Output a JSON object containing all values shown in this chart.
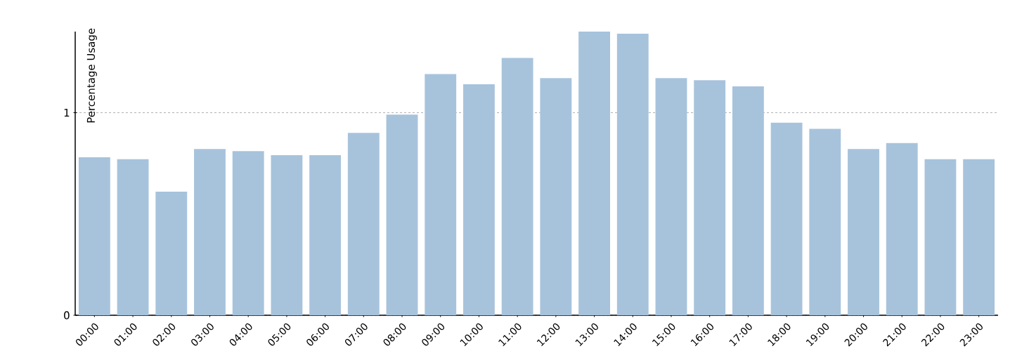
{
  "chart_data": {
    "type": "bar",
    "ylabel": "Percentage Usage",
    "categories": [
      "00:00",
      "01:00",
      "02:00",
      "03:00",
      "04:00",
      "05:00",
      "06:00",
      "07:00",
      "08:00",
      "09:00",
      "10:00",
      "11:00",
      "12:00",
      "13:00",
      "14:00",
      "15:00",
      "16:00",
      "17:00",
      "18:00",
      "19:00",
      "20:00",
      "21:00",
      "22:00",
      "23:00"
    ],
    "values": [
      0.78,
      0.77,
      0.61,
      0.82,
      0.81,
      0.79,
      0.79,
      0.9,
      0.99,
      1.19,
      1.14,
      1.27,
      1.17,
      1.4,
      1.39,
      1.17,
      1.16,
      1.13,
      0.95,
      0.92,
      0.82,
      0.85,
      0.77,
      0.77
    ],
    "color": "#a7c3dc",
    "ylim": [
      0,
      1.4
    ],
    "yticks": [
      0,
      1
    ],
    "grid": "y"
  }
}
